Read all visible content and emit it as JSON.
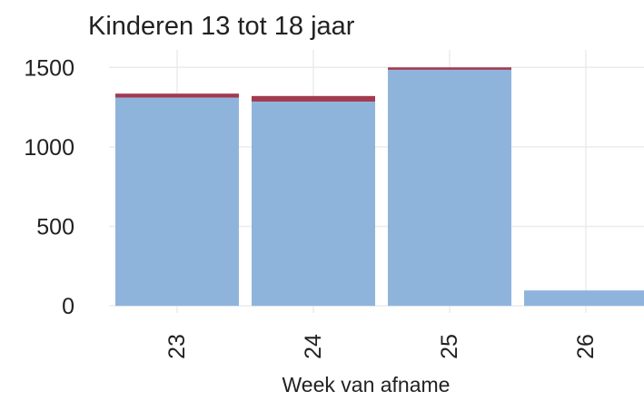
{
  "chart_data": {
    "type": "stacked_bar",
    "title": "Kinderen 13 tot 18 jaar",
    "x_label": "Week van afname",
    "categories": [
      "23",
      "24",
      "25",
      "26"
    ],
    "series": [
      {
        "color": "#8fb4dc",
        "values": [
          1310,
          1285,
          1485,
          97
        ]
      },
      {
        "color": "#a33a4f",
        "values": [
          25,
          35,
          15,
          0
        ]
      }
    ],
    "ylim": [
      -45,
      1610
    ],
    "yticks": [
      0,
      500,
      1000,
      1500
    ],
    "grid": true
  }
}
